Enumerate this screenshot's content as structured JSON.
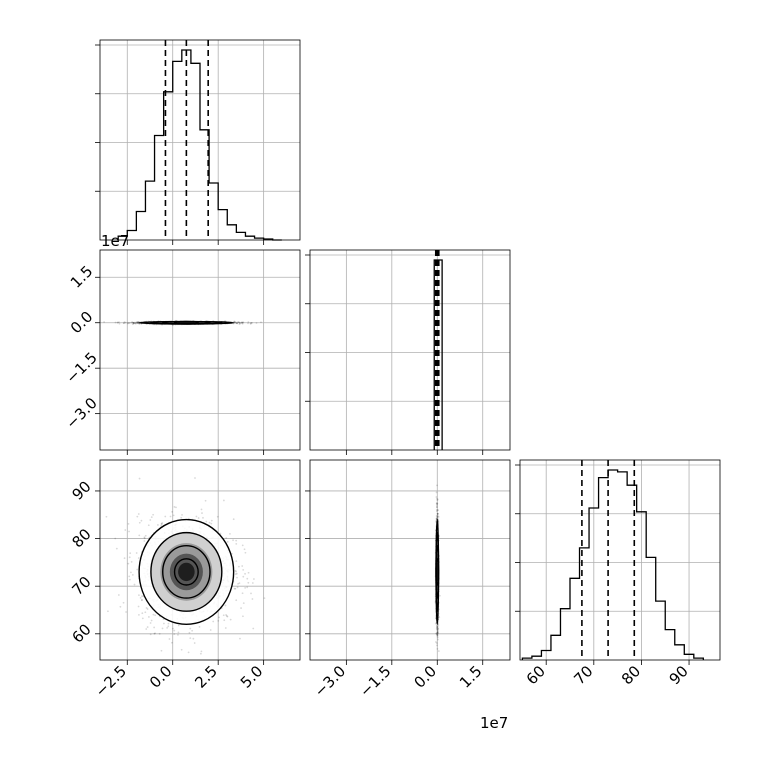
{
  "chart_data": {
    "type": "corner",
    "parameters": [
      "",
      "",
      ""
    ],
    "offset_texts": {
      "p1_y": "1e7",
      "p1_x": "1e7"
    },
    "marginals": [
      {
        "param": 0,
        "range": [
          -4.0,
          7.0
        ],
        "bin_edges": [
          -3.0,
          -2.5,
          -2.0,
          -1.5,
          -1.0,
          -0.5,
          0.0,
          0.5,
          1.0,
          1.5,
          2.0,
          2.5,
          3.0,
          3.5,
          4.0,
          4.5,
          5.0,
          5.5,
          6.0
        ],
        "counts": [
          0.02,
          0.05,
          0.15,
          0.31,
          0.55,
          0.78,
          0.94,
          1.0,
          0.93,
          0.58,
          0.3,
          0.16,
          0.08,
          0.04,
          0.02,
          0.01,
          0.005,
          0.0
        ],
        "quantiles": [
          -0.4,
          0.75,
          1.95
        ]
      },
      {
        "param": 1,
        "range": [
          -4.2,
          2.4
        ],
        "bin_edges": [
          -0.1,
          0.03,
          0.16
        ],
        "counts": [
          1.0,
          1.0
        ],
        "quantiles": [
          -0.05,
          0.0,
          0.05
        ]
      },
      {
        "param": 2,
        "range": [
          54.5,
          96.5
        ],
        "bin_edges": [
          55,
          57,
          59,
          61,
          63,
          65,
          67,
          69,
          71,
          73,
          75,
          77,
          79,
          81,
          83,
          85,
          87,
          89,
          91,
          93
        ],
        "counts": [
          0.01,
          0.02,
          0.05,
          0.13,
          0.27,
          0.43,
          0.59,
          0.8,
          0.96,
          1.0,
          0.99,
          0.92,
          0.78,
          0.54,
          0.31,
          0.16,
          0.08,
          0.03,
          0.01
        ],
        "quantiles": [
          67.5,
          73.0,
          78.5
        ]
      }
    ],
    "joint_panels": [
      {
        "x_param": 0,
        "y_param": 1,
        "center": [
          0.75,
          0.0
        ],
        "sigma": [
          1.3,
          0.02
        ]
      },
      {
        "x_param": 0,
        "y_param": 2,
        "center": [
          0.75,
          73.0
        ],
        "sigma": [
          1.3,
          5.5
        ]
      },
      {
        "x_param": 1,
        "y_param": 2,
        "center": [
          0.0,
          73.0
        ],
        "sigma": [
          0.02,
          5.5
        ]
      }
    ],
    "ticks": {
      "p0": {
        "values": [
          -2.5,
          0.0,
          2.5,
          5.0
        ],
        "labels": [
          "−2.5",
          "0.0",
          "2.5",
          "5.0"
        ]
      },
      "p1": {
        "values": [
          -3.0,
          -1.5,
          0.0,
          1.5
        ],
        "labels": [
          "−3.0",
          "−1.5",
          "0.0",
          "1.5"
        ]
      },
      "p2": {
        "values": [
          60,
          70,
          80,
          90
        ],
        "labels": [
          "60",
          "70",
          "80",
          "90"
        ]
      }
    },
    "grid": true
  }
}
